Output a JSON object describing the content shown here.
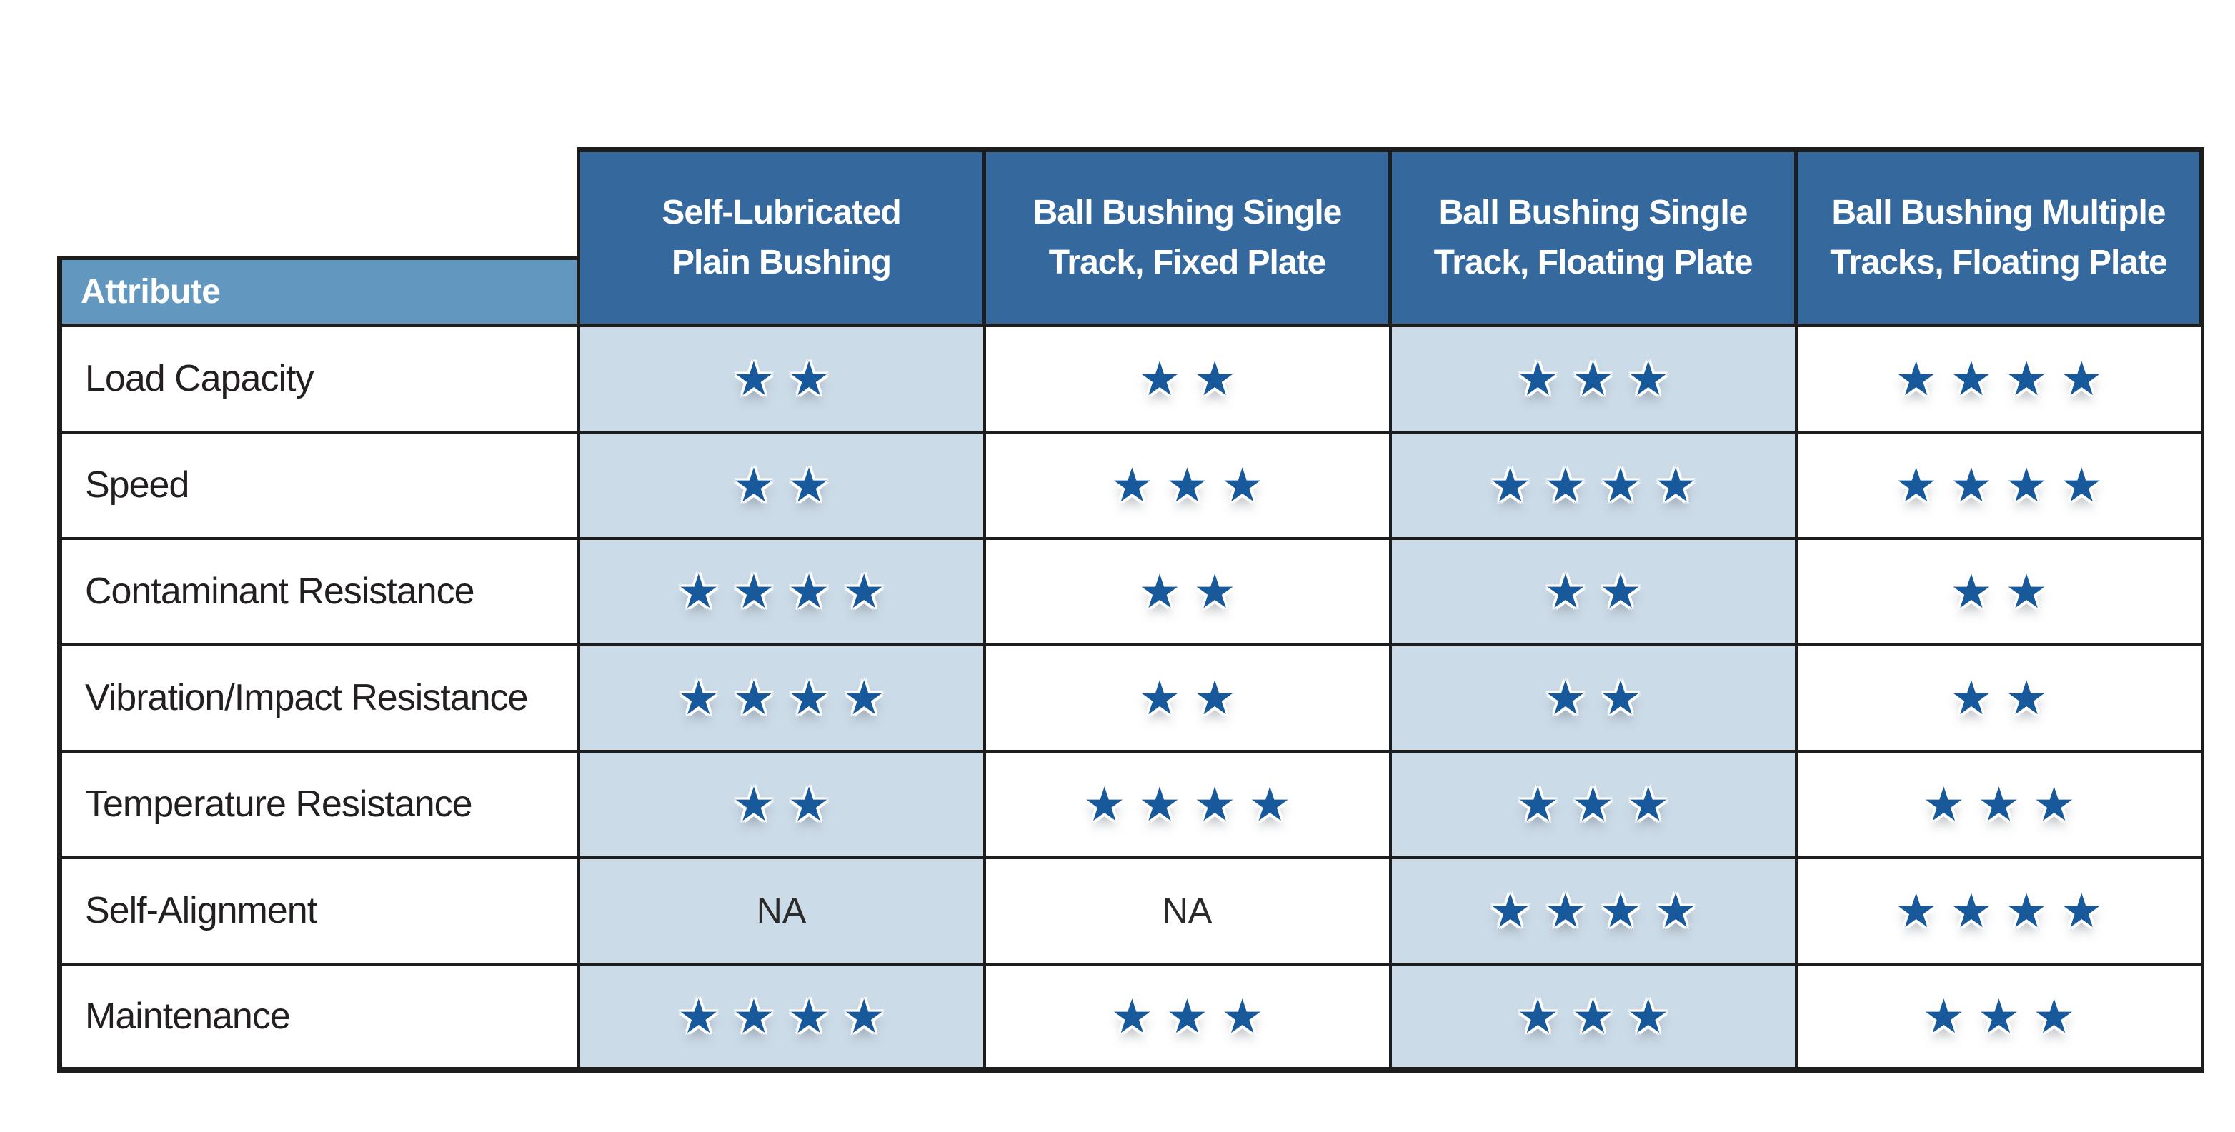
{
  "chart_data": {
    "type": "table",
    "row_header": "Attribute",
    "na_label": "NA",
    "max_stars": 4,
    "columns": [
      "Self-Lubricated\nPlain Bushing",
      "Ball Bushing Single\nTrack, Fixed Plate",
      "Ball Bushing Single\nTrack, Floating Plate",
      "Ball Bushing Multiple\nTracks, Floating Plate"
    ],
    "rows": [
      {
        "attribute": "Load Capacity",
        "ratings": [
          2,
          2,
          3,
          4
        ]
      },
      {
        "attribute": "Speed",
        "ratings": [
          2,
          3,
          4,
          4
        ]
      },
      {
        "attribute": "Contaminant Resistance",
        "ratings": [
          4,
          2,
          2,
          2
        ]
      },
      {
        "attribute": "Vibration/Impact Resistance",
        "ratings": [
          4,
          2,
          2,
          2
        ]
      },
      {
        "attribute": "Temperature Resistance",
        "ratings": [
          2,
          4,
          3,
          3
        ]
      },
      {
        "attribute": "Self-Alignment",
        "ratings": [
          "NA",
          "NA",
          4,
          4
        ]
      },
      {
        "attribute": "Maintenance",
        "ratings": [
          4,
          3,
          3,
          3
        ]
      }
    ]
  },
  "icons": {
    "star_icon": "★"
  },
  "colors": {
    "header_bg": "#35699d",
    "attribute_header_bg": "#6297bf",
    "stripe_bg": "#ccdbe8",
    "star_blue": "#17599a",
    "border_black": "#1d1d1d",
    "text_black": "#231f20"
  }
}
